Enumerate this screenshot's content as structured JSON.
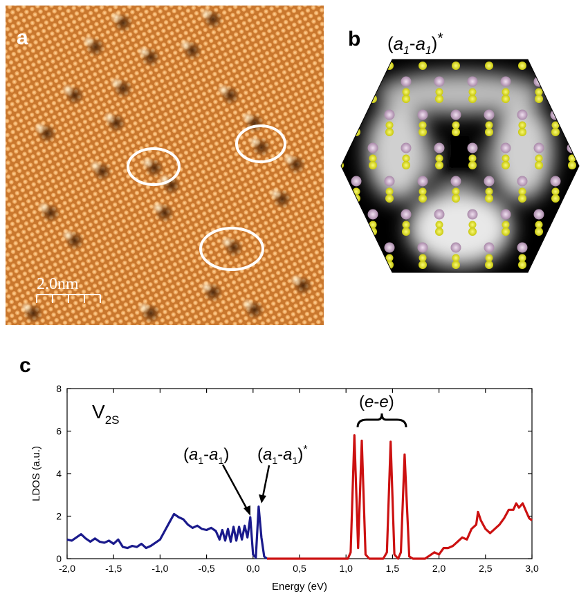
{
  "panel_a": {
    "label": "a",
    "scale_bar_text": "2.0nm"
  },
  "panel_b": {
    "label": "b",
    "title": "(a1-a1)*"
  },
  "panel_c": {
    "label": "c",
    "series_label": "V2S",
    "annotations": {
      "bonding": "(a1-a1)",
      "antibonding": "(a1-a1)*",
      "e_states": "(e-e)"
    }
  },
  "colors": {
    "stm_base": "#d9893a",
    "blue_series": "#1a1a8c",
    "red_series": "#cc1111",
    "s_atom": "#e2e21a",
    "mo_atom": "#c9a9c9"
  },
  "chart_data": {
    "type": "line",
    "xlabel": "Energy (eV)",
    "ylabel": "LDOS (a.u.)",
    "xlim": [
      -2.0,
      3.0
    ],
    "ylim": [
      0,
      8
    ],
    "xticks": [
      "-2,0",
      "-1,5",
      "-1,0",
      "-0,5",
      "0,0",
      "0,5",
      "1,0",
      "1,5",
      "2,0",
      "2,5",
      "3,0"
    ],
    "yticks": [
      "0",
      "2",
      "4",
      "6",
      "8"
    ],
    "series": [
      {
        "color": "#1a1a8c",
        "points": [
          [
            -2.0,
            0.9
          ],
          [
            -1.95,
            0.85
          ],
          [
            -1.9,
            1.0
          ],
          [
            -1.85,
            1.15
          ],
          [
            -1.8,
            0.95
          ],
          [
            -1.75,
            0.8
          ],
          [
            -1.7,
            0.95
          ],
          [
            -1.65,
            0.8
          ],
          [
            -1.6,
            0.75
          ],
          [
            -1.55,
            0.85
          ],
          [
            -1.5,
            0.7
          ],
          [
            -1.45,
            0.9
          ],
          [
            -1.4,
            0.55
          ],
          [
            -1.35,
            0.5
          ],
          [
            -1.3,
            0.6
          ],
          [
            -1.25,
            0.55
          ],
          [
            -1.2,
            0.7
          ],
          [
            -1.15,
            0.5
          ],
          [
            -1.1,
            0.6
          ],
          [
            -1.05,
            0.75
          ],
          [
            -1.0,
            0.9
          ],
          [
            -0.95,
            1.3
          ],
          [
            -0.9,
            1.7
          ],
          [
            -0.85,
            2.1
          ],
          [
            -0.8,
            1.95
          ],
          [
            -0.75,
            1.85
          ],
          [
            -0.7,
            1.6
          ],
          [
            -0.65,
            1.45
          ],
          [
            -0.6,
            1.55
          ],
          [
            -0.55,
            1.4
          ],
          [
            -0.5,
            1.35
          ],
          [
            -0.45,
            1.45
          ],
          [
            -0.4,
            1.3
          ],
          [
            -0.36,
            0.9
          ],
          [
            -0.33,
            1.35
          ],
          [
            -0.3,
            0.85
          ],
          [
            -0.27,
            1.4
          ],
          [
            -0.24,
            0.8
          ],
          [
            -0.21,
            1.5
          ],
          [
            -0.18,
            0.85
          ],
          [
            -0.15,
            1.5
          ],
          [
            -0.12,
            0.9
          ],
          [
            -0.09,
            1.55
          ],
          [
            -0.06,
            1.0
          ],
          [
            -0.03,
            1.95
          ],
          [
            0.0,
            0.2
          ],
          [
            0.03,
            0.05
          ],
          [
            0.06,
            2.45
          ],
          [
            0.09,
            1.0
          ],
          [
            0.12,
            0.1
          ],
          [
            0.15,
            0.0
          ]
        ]
      },
      {
        "color": "#cc1111",
        "points": [
          [
            0.15,
            0.0
          ],
          [
            0.9,
            0.0
          ],
          [
            1.02,
            0.0
          ],
          [
            1.05,
            0.3
          ],
          [
            1.09,
            5.8
          ],
          [
            1.13,
            0.5
          ],
          [
            1.17,
            5.55
          ],
          [
            1.21,
            0.2
          ],
          [
            1.25,
            0.0
          ],
          [
            1.4,
            0.0
          ],
          [
            1.44,
            0.3
          ],
          [
            1.48,
            5.5
          ],
          [
            1.52,
            0.2
          ],
          [
            1.56,
            0.0
          ],
          [
            1.59,
            0.3
          ],
          [
            1.63,
            4.9
          ],
          [
            1.68,
            0.1
          ],
          [
            1.72,
            0.0
          ],
          [
            1.85,
            0.0
          ],
          [
            1.9,
            0.15
          ],
          [
            1.95,
            0.3
          ],
          [
            2.0,
            0.2
          ],
          [
            2.05,
            0.5
          ],
          [
            2.1,
            0.5
          ],
          [
            2.15,
            0.6
          ],
          [
            2.2,
            0.8
          ],
          [
            2.25,
            1.0
          ],
          [
            2.3,
            0.9
          ],
          [
            2.35,
            1.4
          ],
          [
            2.4,
            1.6
          ],
          [
            2.42,
            2.2
          ],
          [
            2.45,
            1.8
          ],
          [
            2.5,
            1.4
          ],
          [
            2.55,
            1.2
          ],
          [
            2.6,
            1.4
          ],
          [
            2.65,
            1.6
          ],
          [
            2.7,
            1.9
          ],
          [
            2.75,
            2.3
          ],
          [
            2.8,
            2.3
          ],
          [
            2.83,
            2.6
          ],
          [
            2.86,
            2.4
          ],
          [
            2.9,
            2.6
          ],
          [
            2.94,
            2.2
          ],
          [
            2.97,
            1.9
          ],
          [
            3.0,
            1.8
          ]
        ]
      }
    ]
  }
}
